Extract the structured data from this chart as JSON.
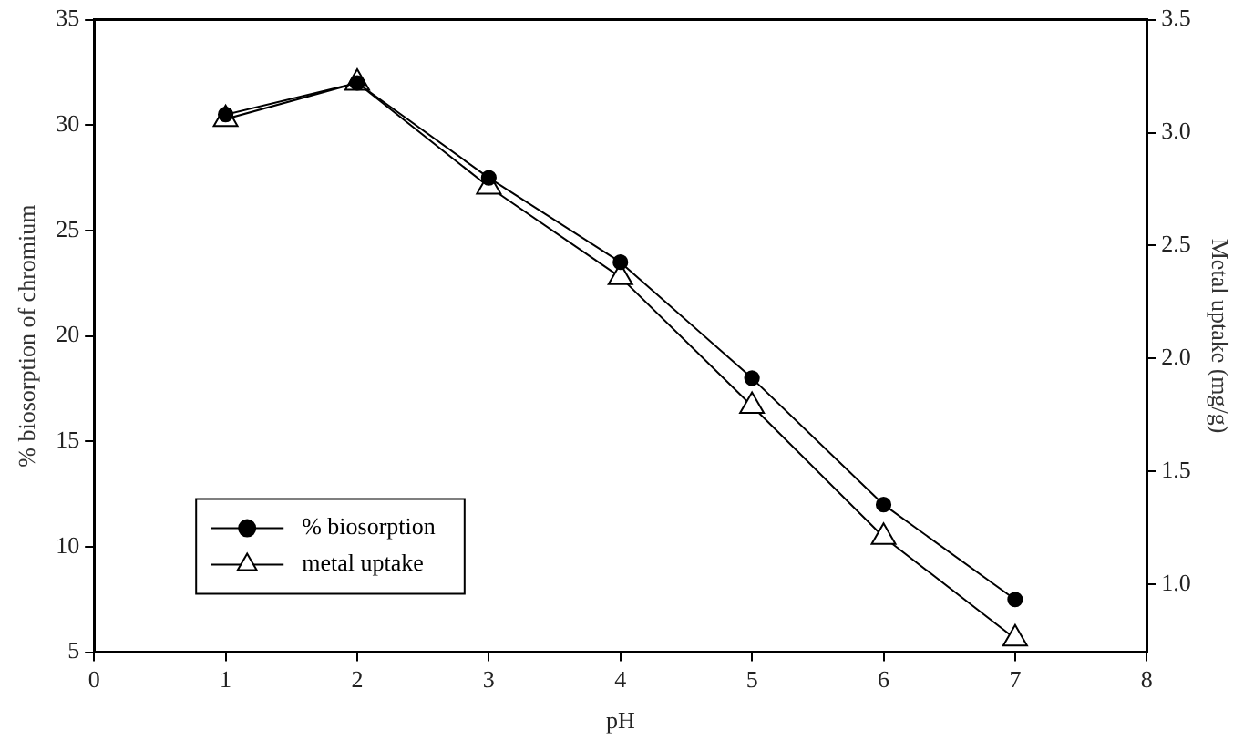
{
  "chart_data": {
    "type": "line",
    "xlabel": "pH",
    "ylabel": "% biosorption of chromium",
    "y2label": "Metal uptake (mg/g)",
    "x": [
      1,
      2,
      3,
      4,
      5,
      6,
      7
    ],
    "series": [
      {
        "name": "% biosorption",
        "color": "#000000",
        "marker": "circle",
        "values": [
          30.5,
          32,
          27.5,
          23.5,
          18,
          12,
          7.5
        ]
      },
      {
        "name": "metal uptake",
        "color": "#000000",
        "marker": "triangle",
        "axis": "y2",
        "values": [
          3.06,
          3.22,
          2.76,
          2.36,
          1.79,
          1.21,
          0.76
        ]
      }
    ],
    "xlim": [
      0,
      8
    ],
    "xticks": [
      0,
      1,
      2,
      3,
      4,
      5,
      6,
      7,
      8
    ],
    "ylim": [
      5,
      35
    ],
    "yticks": [
      5,
      10,
      15,
      20,
      25,
      30,
      35
    ],
    "y2lim": [
      0.7,
      3.5
    ],
    "y2ticks": [
      {
        "value": 1,
        "label": "1.0"
      },
      {
        "value": 1.5,
        "label": "1.5"
      },
      {
        "value": 2,
        "label": "2.0"
      },
      {
        "value": 2.5,
        "label": "2.5"
      },
      {
        "value": 3,
        "label": "3.0"
      },
      {
        "value": 3.5,
        "label": "3.5"
      }
    ],
    "grid": false,
    "legend": "bottom left",
    "line_style": "solid"
  }
}
